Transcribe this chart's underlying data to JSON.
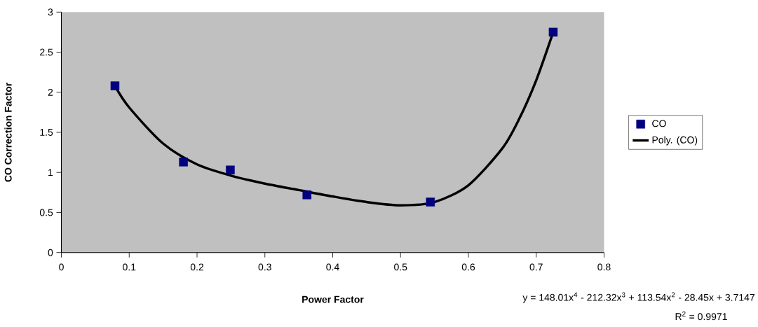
{
  "chart_data": {
    "type": "scatter",
    "xlabel": "Power Factor",
    "ylabel": "CO Correction Factor",
    "xlim": [
      0,
      0.8
    ],
    "xticks": [
      0,
      0.1,
      0.2,
      0.3,
      0.4,
      0.5,
      0.6,
      0.7,
      0.8
    ],
    "ylim": [
      0,
      3
    ],
    "yticks": [
      0,
      0.5,
      1,
      1.5,
      2,
      2.5,
      3
    ],
    "grid": false,
    "legend": "right",
    "marker": "square",
    "series": [
      {
        "name": "CO",
        "color": "#000080",
        "x": [
          0.079,
          0.18,
          0.249,
          0.362,
          0.544,
          0.725
        ],
        "values": [
          2.08,
          1.13,
          1.03,
          0.72,
          0.63,
          2.75
        ]
      },
      {
        "name": "Poly. (CO)",
        "type": "line",
        "color": "#000000",
        "marker": "none",
        "line_style": "solid",
        "x": [
          0.079,
          0.1,
          0.15,
          0.2,
          0.25,
          0.3,
          0.35,
          0.4,
          0.45,
          0.5,
          0.55,
          0.6,
          0.65,
          0.675,
          0.7,
          0.725
        ],
        "values": [
          2.08,
          1.81,
          1.36,
          1.1,
          0.96,
          0.86,
          0.78,
          0.7,
          0.63,
          0.59,
          0.63,
          0.84,
          1.3,
          1.67,
          2.15,
          2.75
        ]
      }
    ],
    "annotations": [
      "y = 148.01x$^{4}$ - 212.32x$^{3}$ + 113.54x$^{2}$ - 28.45x + 3.7147",
      "R$^{2}$ = 0.9971"
    ]
  }
}
